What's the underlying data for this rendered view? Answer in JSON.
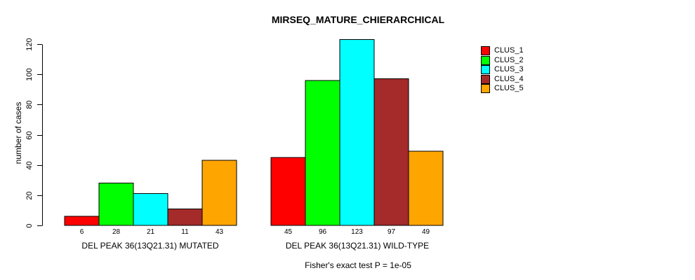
{
  "chart_data": {
    "type": "bar",
    "title": "MIRSEQ_MATURE_CHIERARCHICAL",
    "ylabel": "number of cases",
    "xlabel": "",
    "ylim": [
      0,
      120
    ],
    "yticks": [
      0,
      20,
      40,
      60,
      80,
      100,
      120
    ],
    "grid": "off",
    "annotation": "Fisher's exact test P = 1e-05",
    "bar_border_color": "#000000",
    "background_color": "#FFFFFF",
    "text_color": "#000000",
    "legend": {
      "position": "right",
      "entries": [
        {
          "label": "CLUS_1",
          "color": "#FF0000"
        },
        {
          "label": "CLUS_2",
          "color": "#00FF00"
        },
        {
          "label": "CLUS_3",
          "color": "#00FFFF"
        },
        {
          "label": "CLUS_4",
          "color": "#A52A2A"
        },
        {
          "label": "CLUS_5",
          "color": "#FFA500"
        }
      ]
    },
    "series_names": [
      "CLUS_1",
      "CLUS_2",
      "CLUS_3",
      "CLUS_4",
      "CLUS_5"
    ],
    "groups": [
      {
        "key": "mutated",
        "label": "DEL PEAK 36(13Q21.31) MUTATED",
        "values": [
          6,
          28,
          21,
          11,
          43
        ]
      },
      {
        "key": "wild_type",
        "label": "DEL PEAK 36(13Q21.31) WILD-TYPE",
        "values": [
          45,
          96,
          123,
          97,
          49
        ]
      }
    ]
  }
}
